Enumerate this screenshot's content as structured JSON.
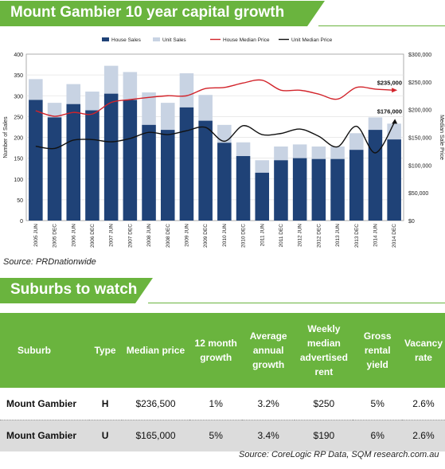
{
  "title": "Mount Gambier 10 year capital growth",
  "chart_source": "Source: PRDnationwide",
  "section_title": "Suburbs to watch",
  "table_source": "Source: CoreLogic RP Data, SQM research.com.au",
  "colors": {
    "green": "#6ab43e",
    "house_sales": "#1f4277",
    "unit_sales": "#c8d3e3",
    "house_median": "#d2232a",
    "unit_median": "#111111"
  },
  "chart_data": {
    "type": "bar",
    "categories": [
      "2005 JUN",
      "2005 DEC",
      "2006 JUN",
      "2006 DEC",
      "2007 JUN",
      "2007 DEC",
      "2008 JUN",
      "2008 DEC",
      "2009 JUN",
      "2009 DEC",
      "2010 JUN",
      "2010 DEC",
      "2011 JUN",
      "2011 DEC",
      "2012 JUN",
      "2012 DEC",
      "2013 JUN",
      "2013 DEC",
      "2014 JUN",
      "2014 DEC"
    ],
    "ylabel": "Number of Sales",
    "y2label": "Median Sale Price",
    "ylim": [
      0,
      400
    ],
    "y2lim": [
      0,
      300000
    ],
    "yticks": [
      "0",
      "50",
      "100",
      "150",
      "200",
      "250",
      "300",
      "350",
      "400"
    ],
    "y2ticks": [
      "$0",
      "$50,000",
      "$100,000",
      "$150,000",
      "$200,000",
      "$250,000",
      "$300,000"
    ],
    "legend": [
      "House Sales",
      "Unit Sales",
      "House Median Price",
      "Unit Median Price"
    ],
    "legend_position": "top",
    "series": [
      {
        "name": "House Sales",
        "kind": "stacked-bar",
        "values": [
          290,
          248,
          280,
          265,
          305,
          290,
          230,
          218,
          272,
          240,
          187,
          155,
          115,
          145,
          150,
          148,
          148,
          170,
          218,
          195
        ]
      },
      {
        "name": "Unit Sales",
        "kind": "stacked-bar",
        "values": [
          50,
          35,
          48,
          45,
          67,
          67,
          78,
          65,
          82,
          62,
          43,
          33,
          30,
          33,
          33,
          30,
          30,
          40,
          30,
          38
        ]
      },
      {
        "name": "House Median Price",
        "kind": "line",
        "values": [
          198000,
          188000,
          195000,
          192000,
          213000,
          218000,
          222000,
          225000,
          225000,
          238000,
          240000,
          248000,
          253000,
          235000,
          235000,
          228000,
          219000,
          240000,
          237000,
          235000
        ]
      },
      {
        "name": "Unit Median Price",
        "kind": "line",
        "values": [
          134000,
          130000,
          145000,
          146000,
          142000,
          148000,
          159000,
          155000,
          162000,
          168000,
          143000,
          171000,
          155000,
          157000,
          165000,
          152000,
          133000,
          170000,
          122000,
          176000
        ]
      }
    ],
    "annotations": [
      "$235,000",
      "$176,000"
    ]
  },
  "table": {
    "headers": [
      {
        "l1": "Suburb",
        "l2": "",
        "l3": ""
      },
      {
        "l1": "Type",
        "l2": "",
        "l3": ""
      },
      {
        "l1": "Median price",
        "l2": "",
        "l3": ""
      },
      {
        "l1": "12 month",
        "l2": "growth",
        "l3": ""
      },
      {
        "l1": "Average",
        "l2": "annual",
        "l3": "growth"
      },
      {
        "l1": "Weekly",
        "l2": "median",
        "l3": "advertised rent"
      },
      {
        "l1": "Gross",
        "l2": "rental",
        "l3": "yield"
      },
      {
        "l1": "Vacancy",
        "l2": "rate",
        "l3": ""
      }
    ],
    "rows": [
      [
        "Mount Gambier",
        "H",
        "$236,500",
        "1%",
        "3.2%",
        "$250",
        "5%",
        "2.6%"
      ],
      [
        "Mount Gambier",
        "U",
        "$165,000",
        "5%",
        "3.4%",
        "$190",
        "6%",
        "2.6%"
      ]
    ]
  }
}
